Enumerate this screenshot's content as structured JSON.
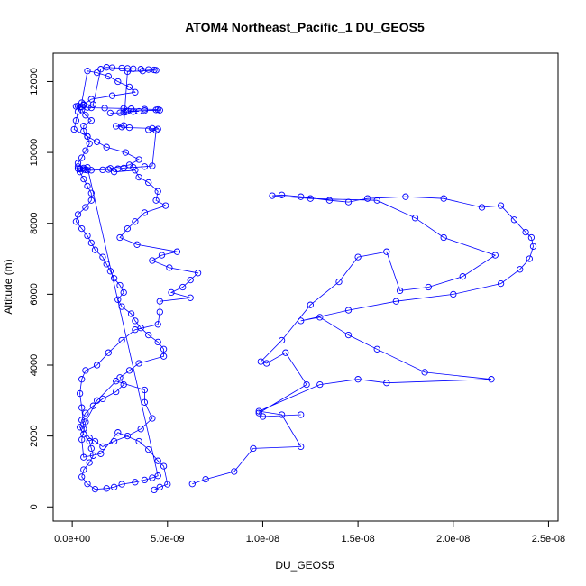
{
  "chart_data": {
    "type": "line",
    "title": "ATOM4 Northeast_Pacific_1 DU_GEOS5",
    "xlabel": "DU_GEOS5",
    "ylabel": "Altitude (m)",
    "xlim": [
      -1e-09,
      2.55e-08
    ],
    "ylim": [
      -400,
      12800
    ],
    "x_ticks": [
      0,
      5e-09,
      1e-08,
      1.5e-08,
      2e-08,
      2.5e-08
    ],
    "x_tick_labels": [
      "0.0e+00",
      "5.0e-09",
      "1.0e-08",
      "1.5e-08",
      "2.0e-08",
      "2.5e-08"
    ],
    "y_ticks": [
      0,
      2000,
      4000,
      6000,
      8000,
      10000,
      12000
    ],
    "y_tick_labels": [
      "0",
      "2000",
      "4000",
      "6000",
      "8000",
      "10000",
      "12000"
    ],
    "grid": false,
    "legend": "none",
    "colors": {
      "series": "#0000ff",
      "axis": "#000000",
      "background": "#ffffff"
    },
    "series": [
      {
        "x": [
          4.3e-09,
          4.6e-09,
          5e-09,
          4.8e-09,
          4.5e-09,
          4e-09,
          3.5e-09,
          2.4e-09,
          1.5e-09,
          6e-10,
          5e-10,
          7e-10,
          1.3e-09,
          2.3e-09,
          3.8e-09,
          3.8e-09,
          4.2e-09,
          3.6e-09,
          2.9e-09,
          2.2e-09,
          1.6e-09,
          1.2e-09,
          9e-10,
          6e-10,
          5e-10,
          4e-10,
          5e-10,
          7e-10,
          1.3e-09,
          1.9e-09,
          2.6e-09,
          3.3e-09,
          4.5e-09,
          4.6e-09,
          4.6e-09,
          6.2e-09,
          5.2e-09,
          5.8e-09,
          6.2e-09,
          6.6e-09,
          5.1e-09,
          4.2e-09,
          4.7e-09,
          5.5e-09,
          3.4e-09,
          2.5e-09,
          2.9e-09,
          3.3e-09,
          3.8e-09,
          4.9e-09,
          4.4e-09,
          4.5e-09,
          4e-09,
          3.5e-09,
          3.3e-09,
          2.2e-09,
          2e-09,
          3e-09,
          3.5e-09,
          2.8e-09,
          1.8e-09,
          1.3e-09,
          8e-10,
          6e-10,
          6e-10,
          1e-09,
          7e-10,
          5e-10,
          6e-10,
          1e-09,
          2.1e-09,
          3.3e-09,
          3e-09,
          2.4e-09,
          1.9e-09,
          1.3e-09,
          8e-10,
          5e-10,
          3e-10,
          2e-10,
          1e-10,
          8e-10,
          9e-10,
          7e-10,
          5e-10,
          3e-10,
          3e-10,
          4e-10,
          6e-10,
          8e-10,
          1e-09,
          1e-09,
          7e-10,
          3e-10,
          2e-10,
          5e-10,
          8e-10,
          1e-09,
          1.2e-09,
          1.6e-09,
          1.8e-09,
          2e-09,
          2.2e-09,
          2.5e-09,
          2.7e-09,
          2.4e-09,
          2.6e-09,
          3.1e-09,
          3.3e-09,
          3.6e-09,
          4e-09,
          4.5e-09,
          4.8e-09,
          4.8e-09,
          3.5e-09,
          3e-09,
          2.5e-09,
          2.7e-09,
          2.3e-09,
          1.6e-09,
          1.1e-09,
          7e-10,
          5e-10,
          4e-10,
          6e-10,
          9e-10,
          1e-09,
          1.1e-09,
          9e-10,
          6e-10,
          5e-10,
          8e-10,
          1.2e-09,
          1.8e-09,
          2.2e-09,
          2.6e-09,
          3.3e-09,
          3.8e-09,
          4.2e-09,
          4.5e-09,
          8e-10,
          6e-10,
          4e-10,
          3e-10,
          4e-10,
          6e-10,
          7e-10,
          8e-10,
          1e-09,
          1.6e-09,
          1.9e-09,
          2.4e-09,
          2.7e-09,
          3.2e-09,
          3.8e-09,
          4.2e-09,
          4.4e-09,
          4e-09,
          4.5e-09,
          4.2e-09,
          3e-09,
          2.6e-09,
          2.3e-09,
          2.7e-09,
          2.9e-09,
          3.7e-09,
          4.4e-09,
          4.3e-09,
          4e-09,
          3.6e-09,
          3.2e-09,
          2.9e-09,
          2.6e-09,
          2.1e-09,
          1.8e-09,
          1.5e-09,
          1.1e-09,
          6e-10,
          3e-10,
          2e-10,
          5e-10,
          4e-10,
          8e-10,
          1e-09,
          1.7e-09,
          2.7e-09,
          3.1e-09,
          3.8e-09,
          4.5e-09,
          4.4e-09,
          4.6e-09,
          3.8e-09,
          2.9e-09,
          3.5e-09,
          3.2e-09,
          2.8e-09,
          2.7e-09,
          2.5e-09,
          2e-09
        ],
        "y": [
          480,
          560,
          640,
          1150,
          1300,
          1620,
          1850,
          2100,
          1500,
          1400,
          1900,
          2400,
          3000,
          3550,
          3300,
          2950,
          2500,
          2200,
          2000,
          1850,
          1700,
          1850,
          1950,
          2200,
          2800,
          3200,
          3600,
          3850,
          4000,
          4350,
          4700,
          5000,
          5150,
          5500,
          5800,
          5900,
          6050,
          6200,
          6400,
          6600,
          6750,
          6950,
          7100,
          7200,
          7400,
          7600,
          7850,
          8050,
          8300,
          8500,
          8650,
          8900,
          9150,
          9300,
          9500,
          9450,
          9550,
          9650,
          9800,
          10000,
          10150,
          10300,
          10450,
          10600,
          10750,
          10900,
          11050,
          11200,
          11350,
          11500,
          11600,
          11700,
          11850,
          12000,
          12150,
          12250,
          12300,
          11400,
          11150,
          10900,
          10650,
          10450,
          10250,
          10050,
          9850,
          9700,
          9600,
          9450,
          9250,
          9050,
          8850,
          8650,
          8450,
          8250,
          8050,
          7850,
          7650,
          7450,
          7250,
          7050,
          6850,
          6650,
          6450,
          6250,
          6050,
          5850,
          5650,
          5450,
          5250,
          5050,
          4850,
          4650,
          4450,
          4250,
          4050,
          3850,
          3650,
          3450,
          3250,
          3050,
          2850,
          2650,
          2450,
          2250,
          2050,
          1850,
          1650,
          1450,
          1250,
          1050,
          850,
          650,
          500,
          520,
          560,
          640,
          700,
          760,
          820,
          880,
          9580,
          9560,
          9550,
          9540,
          9530,
          9520,
          9510,
          9500,
          9500,
          9510,
          9520,
          9540,
          9560,
          9580,
          9600,
          9620,
          10620,
          10640,
          10660,
          10680,
          10700,
          10720,
          10740,
          10760,
          12280,
          12300,
          12320,
          12330,
          12340,
          12350,
          12360,
          12370,
          12380,
          12390,
          12400,
          12350,
          11350,
          11330,
          11310,
          11300,
          11290,
          11280,
          11270,
          11260,
          11250,
          11240,
          11230,
          11220,
          11210,
          11200,
          11190,
          11180,
          11170,
          11160,
          11150,
          11140,
          11130,
          11120,
          11110
        ]
      },
      {
        "x": [
          6.3e-09,
          7e-09,
          8.5e-09,
          9.5e-09,
          1.2e-08,
          1.1e-08,
          9.8e-09,
          1.3e-08,
          1.5e-08,
          1.65e-08,
          2.2e-08,
          1.85e-08,
          1.6e-08,
          1.45e-08,
          1.3e-08,
          1.2e-08,
          1.45e-08,
          1.7e-08,
          2e-08,
          2.25e-08,
          2.35e-08,
          2.4e-08,
          2.42e-08,
          2.41e-08,
          2.38e-08,
          2.32e-08,
          2.25e-08,
          2.15e-08,
          1.95e-08,
          1.75e-08,
          1.55e-08,
          1.45e-08,
          1.35e-08,
          1.2e-08,
          1.1e-08,
          1.05e-08,
          1.25e-08,
          1.6e-08,
          1.8e-08,
          1.95e-08,
          2.22e-08,
          2.05e-08,
          1.87e-08,
          1.72e-08,
          1.65e-08,
          1.5e-08,
          1.4e-08,
          1.25e-08,
          1.1e-08,
          9.9e-09,
          1.02e-08,
          1.12e-08,
          1.23e-08,
          9.8e-09,
          1e-08,
          1.2e-08
        ],
        "y": [
          650,
          780,
          1000,
          1650,
          1700,
          2600,
          2700,
          3450,
          3600,
          3500,
          3600,
          3800,
          4450,
          4850,
          5350,
          5250,
          5550,
          5800,
          6000,
          6300,
          6700,
          7000,
          7350,
          7600,
          7750,
          8100,
          8500,
          8450,
          8700,
          8750,
          8700,
          8600,
          8650,
          8750,
          8800,
          8780,
          8700,
          8650,
          8150,
          7600,
          7100,
          6500,
          6200,
          6100,
          7200,
          7050,
          6350,
          5700,
          4700,
          4100,
          4050,
          4350,
          3450,
          2650,
          2550,
          2600
        ]
      }
    ]
  }
}
